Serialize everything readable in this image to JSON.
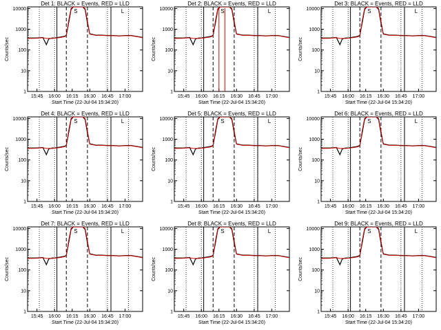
{
  "chart_data": {
    "type": "line",
    "common": {
      "xlabel": "Start Time (22-Jul-04 15:34:20)",
      "ylabel": "Counts/sec",
      "yscale": "log",
      "ylim": [
        1,
        12000
      ],
      "yticks": [
        "1",
        "10",
        "100",
        "1000",
        "10000"
      ],
      "xlim_minutes_display": [
        "15:37",
        "17:15"
      ],
      "xtick_labels": [
        "15:45",
        "16:00",
        "16:15",
        "16:30",
        "16:45",
        "17:00"
      ],
      "xtick_times": [
        "15:45",
        "16:00",
        "16:15",
        "16:30",
        "16:45",
        "17:00"
      ],
      "series_colors": {
        "events": "#000000",
        "lld": "#cc0000"
      },
      "vertical_markers": {
        "solid": [
          "16:02",
          "16:48"
        ],
        "dashed": [
          "16:10",
          "16:28"
        ],
        "dotted": [
          "15:47",
          "16:00",
          "16:45",
          "17:03"
        ]
      },
      "marker_labels": [
        {
          "text": "S",
          "time": "16:18"
        },
        {
          "text": "L",
          "time": "16:58"
        }
      ]
    },
    "panels": [
      {
        "title": "Det 1: BLACK = Events, RED = LLD",
        "xtick_labels": [
          "15:45",
          "16:00",
          "16:15",
          "16:30",
          "16:45",
          "17:00"
        ],
        "lld_dropout": false
      },
      {
        "title": "Det 2: BLACK = Events, RED = LLD",
        "xtick_labels": [
          "15:45",
          "16:00",
          "16:15",
          "16:30",
          "16:45",
          "17:00"
        ],
        "lld_dropout": true
      },
      {
        "title": "Det 3: BLACK = Events, RED = LLD",
        "xtick_labels": [
          "15:45",
          "16:00",
          "16:15",
          "16:30",
          "16:45",
          "17:00"
        ],
        "lld_dropout": false
      },
      {
        "title": "Det 4: BLACK = Events, RED = LLD",
        "xtick_labels": [
          "15:45",
          "16:00",
          "16:15",
          "16:30",
          "16:45",
          "17:00"
        ],
        "lld_dropout": false
      },
      {
        "title": "Det 5: BLACK = Events, RED = LLD",
        "xtick_labels": [
          "15:45",
          "16:00",
          "16:15",
          "16:30",
          "16:45",
          "17:00"
        ],
        "lld_dropout": false
      },
      {
        "title": "Det 6: BLACK = Events, RED = LLD",
        "xtick_labels": [
          "15:45",
          "16:00",
          "16:15",
          "16:30",
          "16:45",
          "17:00"
        ],
        "lld_dropout": false
      },
      {
        "title": "Det 7: BLACK = Events, RED = LLD",
        "xtick_labels": [
          "15:45",
          "16:00",
          "16:15",
          "16:30",
          "16:45",
          "17:00"
        ],
        "lld_dropout": false
      },
      {
        "title": "Det 8: BLACK = Events, RED = LLD",
        "xtick_labels": [
          "15:45",
          "16:00",
          "16:15",
          "16:30",
          "16:45",
          "17:00"
        ],
        "lld_dropout": false
      },
      {
        "title": "Det 9: BLACK = Events, RED = LLD",
        "xtick_labels": [
          "15:45",
          "16:00",
          "16:15",
          "16:30",
          "16:45",
          "17:00"
        ],
        "lld_dropout": false
      }
    ],
    "events_series": {
      "name": "Events",
      "x": [
        "15:37",
        "15:45",
        "15:50",
        "15:53",
        "15:55",
        "15:58",
        "16:00",
        "16:05",
        "16:08",
        "16:10",
        "16:12",
        "16:14",
        "16:16",
        "16:18",
        "16:20",
        "16:22",
        "16:24",
        "16:26",
        "16:28",
        "16:30",
        "16:35",
        "16:40",
        "16:45",
        "16:50",
        "16:55",
        "17:00",
        "17:05",
        "17:10",
        "17:15"
      ],
      "y": [
        380,
        380,
        400,
        180,
        340,
        380,
        380,
        420,
        450,
        500,
        2000,
        9000,
        12000,
        12000,
        12000,
        12000,
        12000,
        9000,
        2000,
        600,
        520,
        520,
        500,
        500,
        480,
        500,
        500,
        450,
        400
      ]
    },
    "lld_series": {
      "name": "LLD",
      "x": [
        "15:37",
        "15:45",
        "15:50",
        "15:53",
        "15:55",
        "15:58",
        "16:00",
        "16:05",
        "16:08",
        "16:10",
        "16:12",
        "16:14",
        "16:16",
        "16:18",
        "16:20",
        "16:22",
        "16:24",
        "16:26",
        "16:28",
        "16:30",
        "16:35",
        "16:40",
        "16:45",
        "16:50",
        "16:55",
        "17:00",
        "17:05",
        "17:10",
        "17:15"
      ],
      "y": [
        360,
        370,
        390,
        360,
        360,
        360,
        370,
        400,
        430,
        480,
        2500,
        10000,
        12000,
        12000,
        12000,
        12000,
        12000,
        10000,
        2500,
        580,
        510,
        510,
        490,
        490,
        470,
        490,
        490,
        440,
        390
      ]
    }
  }
}
